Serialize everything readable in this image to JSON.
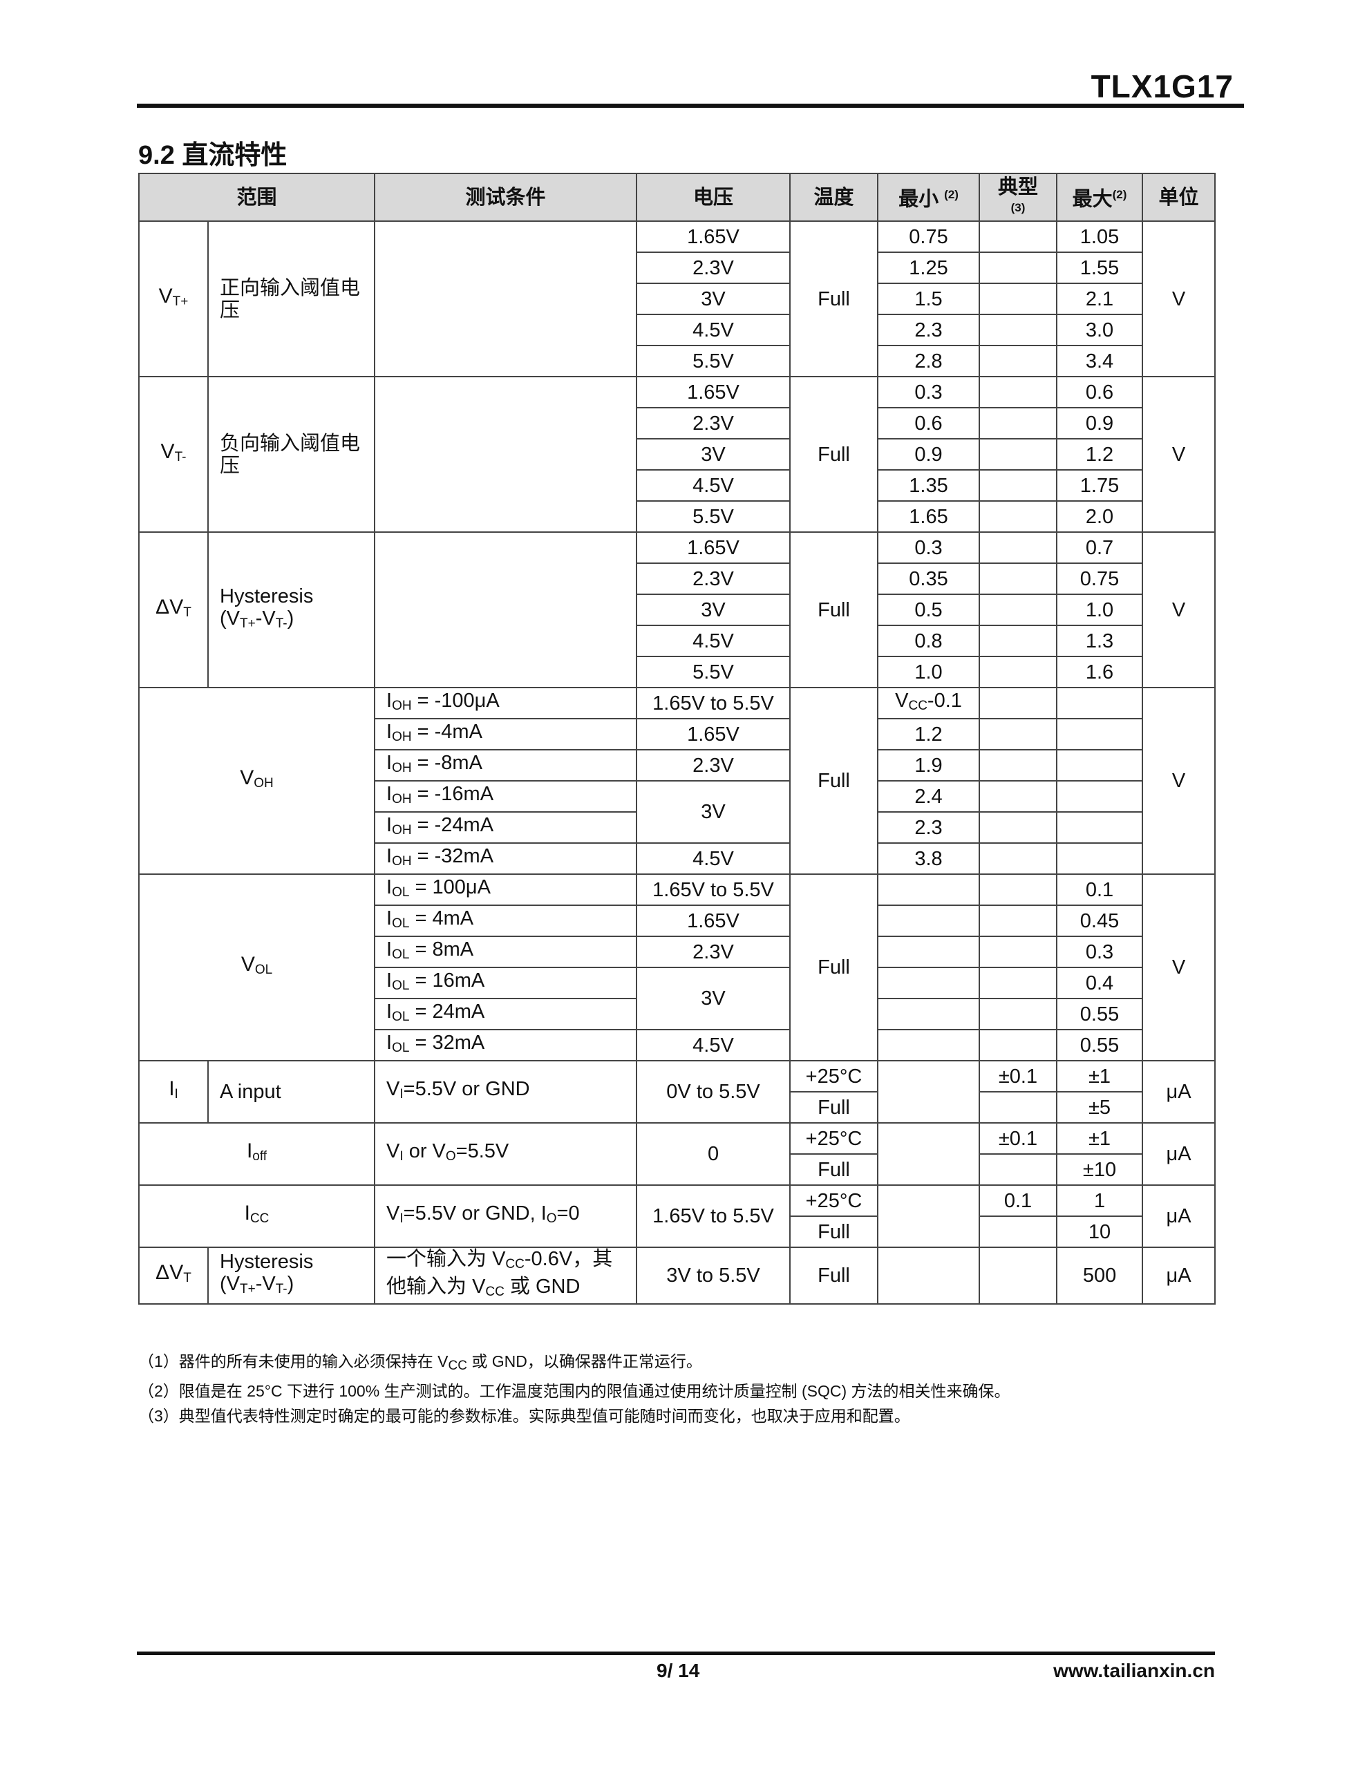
{
  "header": {
    "doc_title": "TLX1G17",
    "section_title": "9.2 直流特性"
  },
  "table": {
    "columns": [
      "范围",
      "测试条件",
      "电压",
      "温度",
      "最小",
      "典型",
      "最大",
      "单位"
    ],
    "column_notes": {
      "min": "(2)",
      "typ": "(3)",
      "max": "(2)"
    },
    "threshold_sections": [
      {
        "symbol": "V_{T+}",
        "desc": "正向输入阈值电压",
        "temp": "Full",
        "unit": "V",
        "voltages": [
          "1.65V",
          "2.3V",
          "3V",
          "4.5V",
          "5.5V"
        ],
        "min": [
          "0.75",
          "1.25",
          "1.5",
          "2.3",
          "2.8"
        ],
        "max": [
          "1.05",
          "1.55",
          "2.1",
          "3.0",
          "3.4"
        ]
      },
      {
        "symbol": "V_{T-}",
        "desc": "负向输入阈值电压",
        "temp": "Full",
        "unit": "V",
        "voltages": [
          "1.65V",
          "2.3V",
          "3V",
          "4.5V",
          "5.5V"
        ],
        "min": [
          "0.3",
          "0.6",
          "0.9",
          "1.35",
          "1.65"
        ],
        "max": [
          "0.6",
          "0.9",
          "1.2",
          "1.75",
          "2.0"
        ]
      },
      {
        "symbol": "ΔV_{T}",
        "desc": "Hysteresis\n(V_{T+}-V_{T-})",
        "temp": "Full",
        "unit": "V",
        "voltages": [
          "1.65V",
          "2.3V",
          "3V",
          "4.5V",
          "5.5V"
        ],
        "min": [
          "0.3",
          "0.35",
          "0.5",
          "0.8",
          "1.0"
        ],
        "max": [
          "0.7",
          "0.75",
          "1.0",
          "1.3",
          "1.6"
        ]
      }
    ],
    "output_sections": [
      {
        "symbol": "V_{OH}",
        "temp": "Full",
        "unit": "V",
        "conditions": [
          "I_{OH} = -100μA",
          "I_{OH} = -4mA",
          "I_{OH} = -8mA",
          "I_{OH} = -16mA",
          "I_{OH} = -24mA",
          "I_{OH} = -32mA"
        ],
        "voltages": [
          "1.65V to 5.5V",
          "1.65V",
          "2.3V",
          "3V",
          "",
          "4.5V"
        ],
        "min": [
          "V_{CC}-0.1",
          "1.2",
          "1.9",
          "2.4",
          "2.3",
          "3.8"
        ],
        "max": [
          "",
          "",
          "",
          "",
          "",
          ""
        ]
      },
      {
        "symbol": "V_{OL}",
        "temp": "Full",
        "unit": "V",
        "conditions": [
          "I_{OL} = 100μA",
          "I_{OL} = 4mA",
          "I_{OL} = 8mA",
          "I_{OL} = 16mA",
          "I_{OL} = 24mA",
          "I_{OL} = 32mA"
        ],
        "voltages": [
          "1.65V to 5.5V",
          "1.65V",
          "2.3V",
          "3V",
          "",
          "4.5V"
        ],
        "min": [
          "",
          "",
          "",
          "",
          "",
          ""
        ],
        "max": [
          "0.1",
          "0.45",
          "0.3",
          "0.4",
          "0.55",
          "0.55"
        ]
      }
    ],
    "leakage_sections": [
      {
        "symbol": "I_{I}",
        "desc": "A input",
        "condition": "V_{I}=5.5V or GND",
        "voltage": "0V to 5.5V",
        "temps": [
          "+25°C",
          "Full"
        ],
        "typ": [
          "±0.1",
          ""
        ],
        "max": [
          "±1",
          "±5"
        ],
        "unit": "μA"
      },
      {
        "symbol": "I_{off}",
        "desc": "",
        "condition": "V_{I} or V_{O}=5.5V",
        "voltage": "0",
        "temps": [
          "+25°C",
          "Full"
        ],
        "typ": [
          "±0.1",
          ""
        ],
        "max": [
          "±1",
          "±10"
        ],
        "unit": "μA"
      },
      {
        "symbol": "I_{CC}",
        "desc": "",
        "condition": "V_{I}=5.5V or GND, I_{O}=0",
        "voltage": "1.65V to 5.5V",
        "temps": [
          "+25°C",
          "Full"
        ],
        "typ": [
          "0.1",
          ""
        ],
        "max": [
          "1",
          "10"
        ],
        "unit": "μA"
      }
    ],
    "last_row": {
      "symbol": "ΔV_{T}",
      "desc": "Hysteresis\n(V_{T+}-V_{T-})",
      "condition": "一个输入为 V_{CC}-0.6V，其\n他输入为 V_{CC} 或 GND",
      "voltage": "3V to 5.5V",
      "temp": "Full",
      "min": "",
      "typ": "",
      "max": "500",
      "unit": "μA"
    }
  },
  "notes": [
    "（1）器件的所有未使用的输入必须保持在 V_{CC} 或 GND，以确保器件正常运行。",
    "（2）限值是在 25°C 下进行 100% 生产测试的。工作温度范围内的限值通过使用统计质量控制 (SQC) 方法的相关性来确保。",
    "（3）典型值代表特性测定时确定的最可能的参数标准。实际典型值可能随时间而变化，也取决于应用和配置。"
  ],
  "footer": {
    "page": "9/ 14",
    "website": "www.tailianxin.cn"
  }
}
